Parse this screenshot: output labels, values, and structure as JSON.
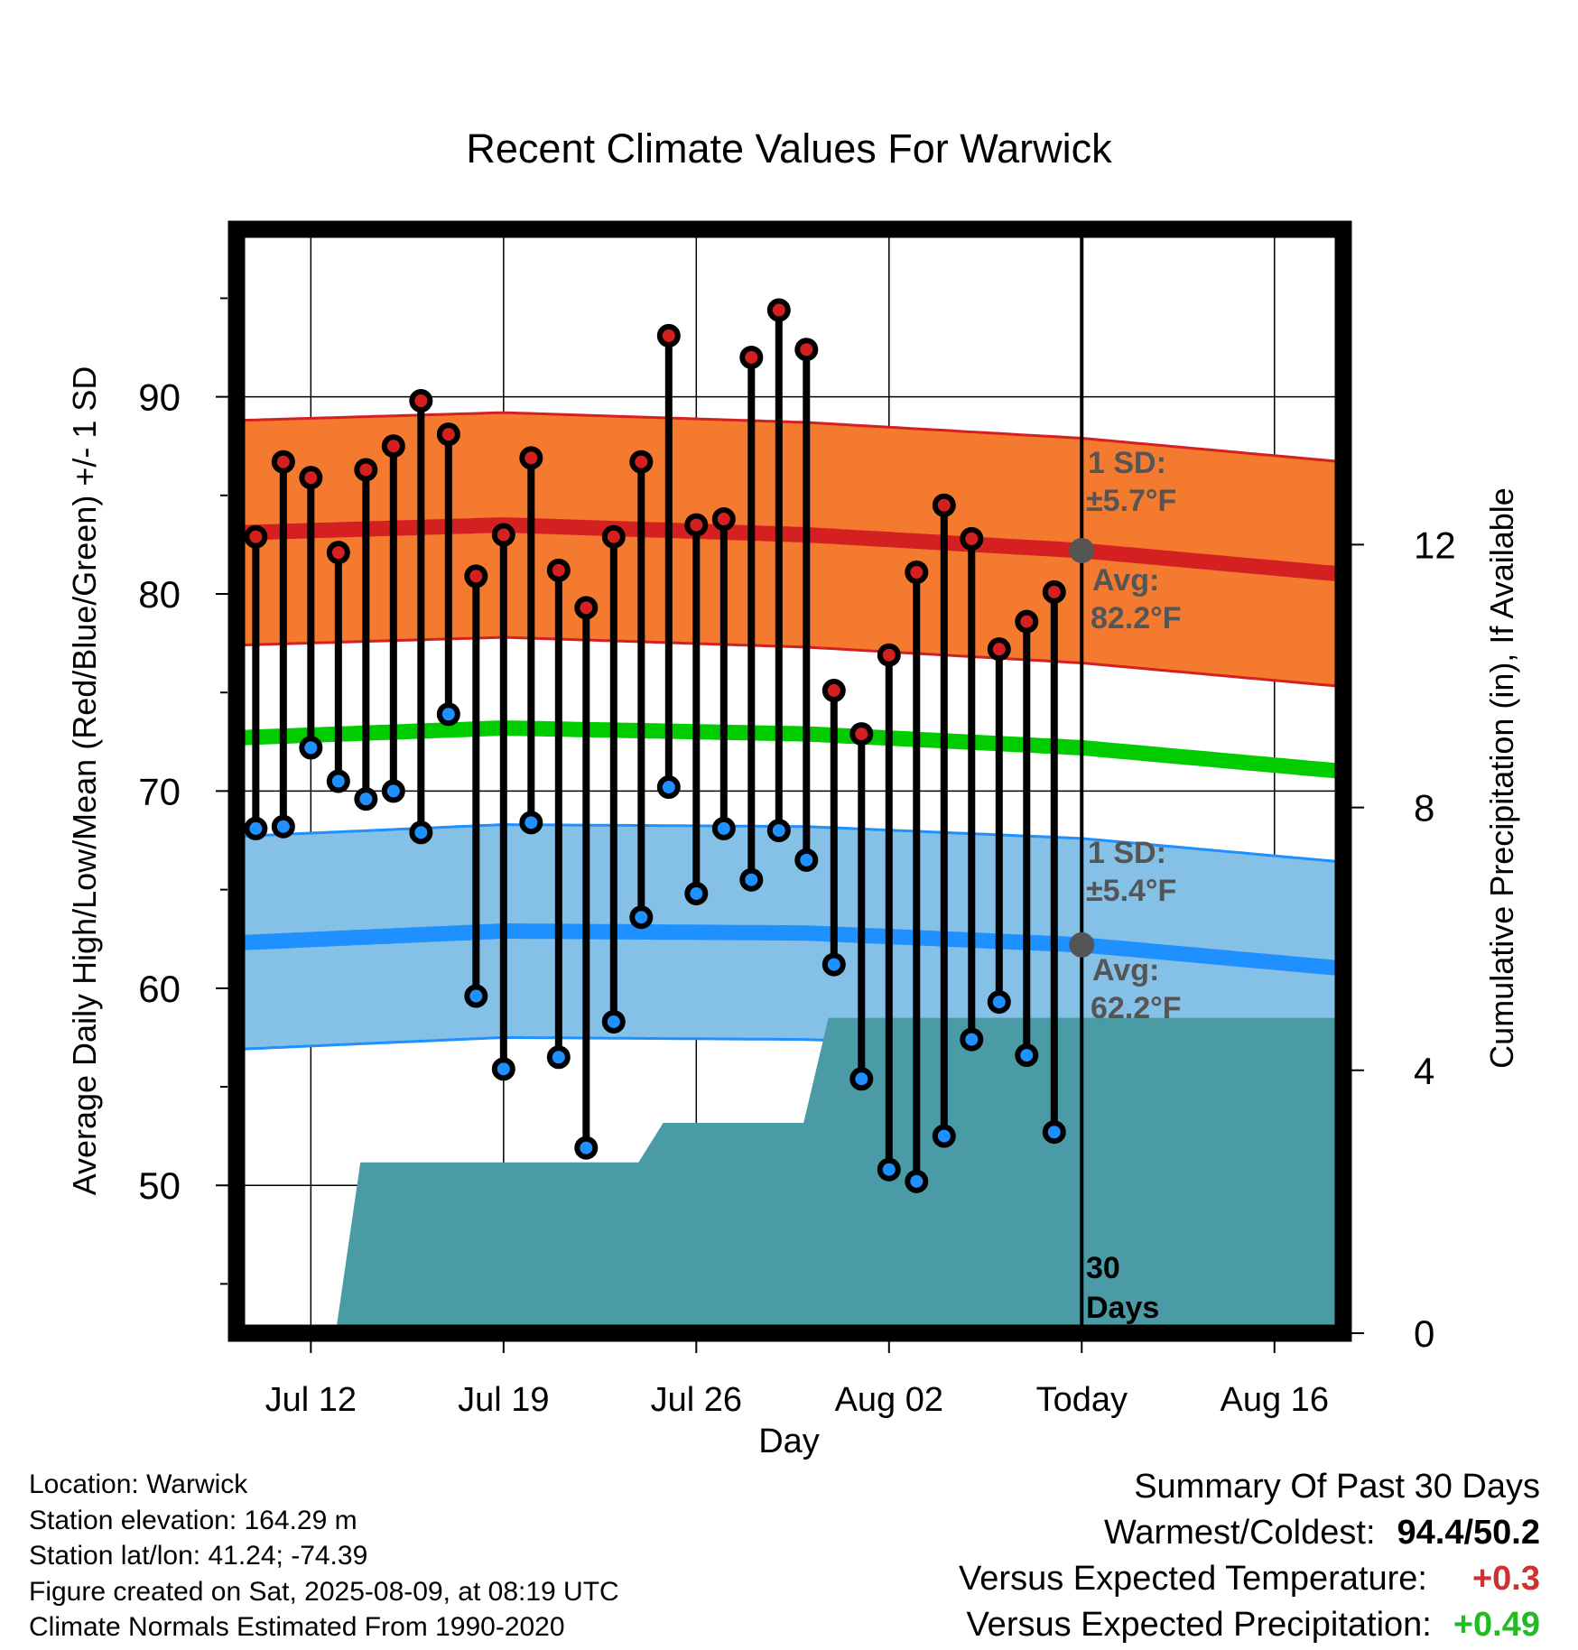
{
  "chart_data": {
    "type": "line",
    "title": "Recent Climate Values For Warwick",
    "xlabel": "Day",
    "ylabel_left": "Average Daily High/Low/Mean (Red/Blue/Green) +/- 1 SD",
    "ylabel_right": "Cumulative Precipitation (in), If Available",
    "x_ticks": [
      "Jul 12",
      "Jul 19",
      "Jul 26",
      "Aug 02",
      "Today",
      "Aug 16"
    ],
    "x_tick_day_index": [
      2,
      9,
      16,
      23,
      30,
      37
    ],
    "x_range_day_index": [
      -0.7,
      39.5
    ],
    "y_left_range": [
      42.5,
      98.5
    ],
    "y_left_ticks": [
      50,
      60,
      70,
      80,
      90
    ],
    "y_right_range": [
      0,
      16.8
    ],
    "y_right_ticks": [
      0,
      4,
      8,
      12
    ],
    "days": [
      0,
      1,
      2,
      3,
      4,
      5,
      6,
      7,
      8,
      9,
      10,
      11,
      12,
      13,
      14,
      15,
      16,
      17,
      18,
      19,
      20,
      21,
      22,
      23,
      24,
      25,
      26,
      27,
      28,
      29
    ],
    "series": [
      {
        "name": "High",
        "color": "#d42020",
        "values": [
          82.9,
          86.7,
          85.9,
          82.1,
          86.3,
          87.5,
          89.8,
          88.1,
          80.9,
          83.0,
          86.9,
          81.2,
          79.3,
          82.9,
          86.7,
          93.1,
          83.5,
          83.8,
          92.0,
          94.4,
          92.4,
          75.1,
          72.9,
          76.9,
          81.1,
          84.5,
          82.8,
          77.2,
          78.6,
          80.1
        ]
      },
      {
        "name": "Low",
        "color": "#1e90ff",
        "values": [
          68.1,
          68.2,
          72.2,
          70.5,
          69.6,
          70.0,
          67.9,
          73.9,
          59.6,
          55.9,
          68.4,
          56.5,
          51.9,
          58.3,
          63.6,
          70.2,
          64.8,
          68.1,
          65.5,
          68.0,
          66.5,
          61.2,
          55.4,
          50.8,
          50.2,
          52.5,
          57.4,
          59.3,
          56.6,
          52.7
        ]
      }
    ],
    "normals": {
      "high_avg": [
        83.1,
        83.5,
        83.0,
        82.2,
        81.0
      ],
      "low_avg": [
        62.3,
        62.9,
        62.8,
        62.2,
        61.0
      ],
      "mean_avg": [
        72.7,
        73.2,
        72.9,
        72.2,
        71.0
      ],
      "normal_days": [
        -0.7,
        9,
        20,
        30,
        39.5
      ],
      "high_sd": 5.7,
      "low_sd": 5.4
    },
    "precip_cumulative": {
      "days": [
        2.9,
        3.8,
        13.9,
        14.8,
        19.9,
        20.8,
        39.5
      ],
      "values": [
        0,
        2.6,
        2.6,
        3.2,
        3.2,
        4.8,
        4.8
      ],
      "color": "#4a9ba5"
    },
    "annotations": {
      "high_sd_label": "1 SD:",
      "high_sd_value": "±5.7°F",
      "high_avg_label": "Avg:",
      "high_avg_value": "82.2°F",
      "low_sd_label": "1 SD:",
      "low_sd_value": "±5.4°F",
      "low_avg_label": "Avg:",
      "low_avg_value": "62.2°F",
      "days_label_1": "30",
      "days_label_2": "Days"
    },
    "colors": {
      "high_band": "#f47a30",
      "high_line": "#d42020",
      "low_band": "#85c1e6",
      "low_line": "#1e90ff",
      "mean_line": "#00cc00"
    }
  },
  "info": {
    "location": "Location: Warwick",
    "elevation": "Station elevation: 164.29 m",
    "latlon": "Station lat/lon: 41.24; -74.39",
    "created": "Figure created on Sat, 2025-08-09, at 08:19 UTC",
    "normals": "Climate Normals Estimated From 1990-2020"
  },
  "summary": {
    "heading": "Summary Of Past 30 Days",
    "warm_cold_label": "Warmest/Coldest:",
    "warm_cold_value": "94.4/50.2",
    "temp_label": "Versus Expected Temperature:",
    "temp_value": "+0.3",
    "precip_label": "Versus Expected Precipitation:",
    "precip_value": "+0.49"
  }
}
